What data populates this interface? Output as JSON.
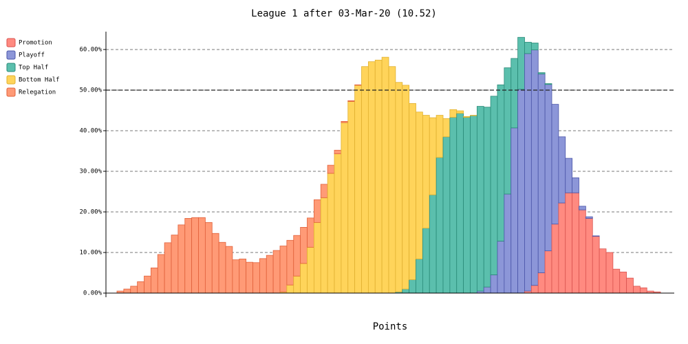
{
  "chart_data": {
    "type": "stacked_histogram",
    "title": "League 1 after 03-Mar-20 (10.52)",
    "x_label": "Points",
    "categories": [
      null,
      null,
      null,
      null,
      null,
      null,
      null,
      null,
      null,
      null,
      null,
      null,
      null,
      null,
      null,
      null,
      null,
      null,
      null,
      null,
      null,
      null,
      null,
      null,
      null,
      null,
      null,
      null,
      null,
      null,
      null,
      null,
      null,
      null,
      null,
      null,
      null,
      null,
      null,
      null,
      null,
      null,
      null,
      null,
      null,
      null,
      null,
      null,
      null,
      null,
      null,
      null,
      null,
      null,
      null,
      null,
      null,
      null,
      null,
      null,
      null,
      null,
      null,
      null,
      null,
      null,
      null,
      null,
      null,
      null,
      null,
      null,
      null,
      null,
      null,
      null,
      null,
      null,
      null,
      null
    ],
    "series": [
      {
        "name": "Promotion",
        "color": "#ff8a80",
        "edge": "#d9534f",
        "values": [
          0,
          0,
          0,
          0,
          0,
          0,
          0,
          0,
          0,
          0,
          0,
          0,
          0,
          0,
          0,
          0,
          0,
          0,
          0,
          0,
          0,
          0,
          0,
          0,
          0,
          0,
          0,
          0,
          0,
          0,
          0,
          0,
          0,
          0,
          0,
          0,
          0,
          0,
          0,
          0,
          0,
          0,
          0,
          0,
          0,
          0,
          0,
          0,
          0,
          0,
          0,
          0,
          0,
          0,
          0,
          0,
          0,
          0,
          0,
          0,
          0.5,
          1.9,
          5,
          10.4,
          17,
          22.2,
          24.7,
          24.7,
          20.5,
          18.4,
          14,
          10.9,
          10,
          5.9,
          5.2,
          3.7,
          1.7,
          1.3,
          0.5,
          0.3
        ]
      },
      {
        "name": "Playoff",
        "color": "#8c96d8",
        "edge": "#4a55a8",
        "values": [
          0,
          0,
          0,
          0,
          0,
          0,
          0,
          0,
          0,
          0,
          0,
          0,
          0,
          0,
          0,
          0,
          0,
          0,
          0,
          0,
          0,
          0,
          0,
          0,
          0,
          0,
          0,
          0,
          0,
          0,
          0,
          0,
          0,
          0,
          0,
          0,
          0,
          0,
          0,
          0,
          0,
          0,
          0,
          0,
          0,
          0,
          0,
          0,
          0,
          0,
          0,
          0,
          0,
          0.5,
          1.5,
          4.5,
          12.8,
          24.4,
          40.7,
          50.2,
          58.5,
          58,
          49,
          41,
          29.5,
          16.3,
          8.5,
          3.7,
          0.9,
          0.4,
          0.1,
          0,
          0,
          0,
          0,
          0,
          0,
          0,
          0,
          0
        ]
      },
      {
        "name": "Top Half",
        "color": "#5bbfad",
        "edge": "#2a8a78",
        "values": [
          0,
          0,
          0,
          0,
          0,
          0,
          0,
          0,
          0,
          0,
          0,
          0,
          0,
          0,
          0,
          0,
          0,
          0,
          0,
          0,
          0,
          0,
          0,
          0,
          0,
          0,
          0,
          0,
          0,
          0,
          0,
          0,
          0,
          0,
          0,
          0,
          0,
          0,
          0,
          0,
          0,
          0.3,
          1,
          3.3,
          8.4,
          16,
          24.2,
          33.4,
          38.5,
          43.3,
          44.3,
          43.3,
          43.7,
          45.5,
          44.3,
          44,
          38.5,
          31.1,
          17.1,
          12.8,
          2.8,
          1.7,
          0.3,
          0.2,
          0,
          0,
          0,
          0,
          0,
          0,
          0,
          0,
          0,
          0,
          0,
          0,
          0,
          0,
          0,
          0
        ]
      },
      {
        "name": "Bottom Half",
        "color": "#ffd45a",
        "edge": "#e0b030",
        "values": [
          0,
          0,
          0,
          0,
          0,
          0,
          0,
          0,
          0,
          0,
          0,
          0,
          0,
          0,
          0,
          0,
          0,
          0,
          0,
          0,
          0,
          0,
          0,
          0,
          0.3,
          2,
          4.2,
          7.3,
          11.3,
          17.4,
          23.5,
          29.5,
          34.3,
          42,
          47.2,
          51.2,
          55.8,
          57,
          57.4,
          58.1,
          55.8,
          51.6,
          50.2,
          43.4,
          36.2,
          27.8,
          19,
          10.4,
          4.5,
          1.9,
          0.6,
          0.2,
          0.1,
          0,
          0,
          0,
          0,
          0,
          0,
          0,
          0,
          0,
          0,
          0,
          0,
          0,
          0,
          0,
          0,
          0,
          0,
          0,
          0,
          0,
          0,
          0,
          0,
          0,
          0,
          0
        ]
      },
      {
        "name": "Relegation",
        "color": "#ff9a76",
        "edge": "#e0603a",
        "values": [
          0.5,
          1,
          1.7,
          2.8,
          4.2,
          6.2,
          9.5,
          12.4,
          14.3,
          16.8,
          18.4,
          18.6,
          18.6,
          17.4,
          14.7,
          12.5,
          11.5,
          8.2,
          8.4,
          7.6,
          7.5,
          8.5,
          9.3,
          10.5,
          11.3,
          11,
          10,
          8.9,
          7.2,
          5.6,
          3.3,
          2,
          0.9,
          0.3,
          0.2,
          0.1,
          0,
          0,
          0,
          0,
          0,
          0,
          0,
          0,
          0,
          0,
          0,
          0,
          0,
          0,
          0,
          0,
          0,
          0,
          0,
          0,
          0,
          0,
          0,
          0,
          0,
          0,
          0,
          0,
          0,
          0,
          0,
          0,
          0,
          0,
          0,
          0,
          0,
          0,
          0,
          0,
          0,
          0,
          0,
          0
        ]
      }
    ],
    "ylim": [
      0,
      64.4
    ],
    "yticks": [
      {
        "value": 0,
        "label": "0.00%"
      },
      {
        "value": 10,
        "label": "10.00%"
      },
      {
        "value": 20,
        "label": "20.00%"
      },
      {
        "value": 30,
        "label": "30.00%"
      },
      {
        "value": 40,
        "label": "40.00%"
      },
      {
        "value": 50,
        "label": "50.00%"
      },
      {
        "value": 60,
        "label": "60.00%"
      }
    ],
    "reference_line": 50,
    "grid": true,
    "legend": "left"
  }
}
